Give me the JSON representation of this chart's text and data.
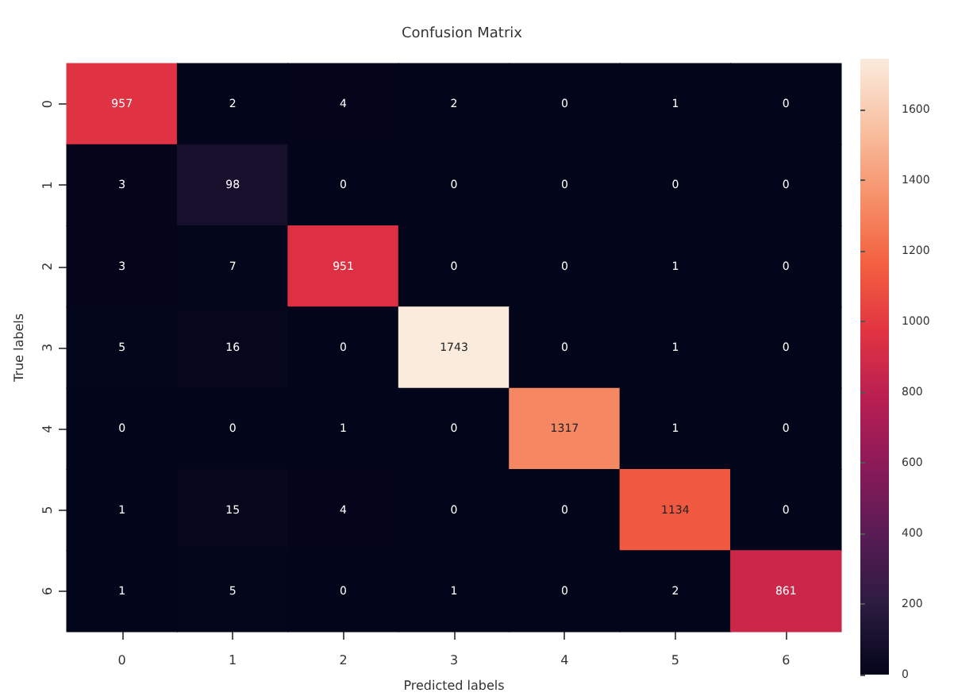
{
  "chart_data": {
    "type": "heatmap",
    "title": "Confusion Matrix",
    "xlabel": "Predicted labels",
    "ylabel": "True labels",
    "categories": [
      "0",
      "1",
      "2",
      "3",
      "4",
      "5",
      "6"
    ],
    "y_categories": [
      "0",
      "1",
      "2",
      "3",
      "4",
      "5",
      "6"
    ],
    "cells": [
      [
        957,
        2,
        4,
        2,
        0,
        1,
        0
      ],
      [
        3,
        98,
        0,
        0,
        0,
        0,
        0
      ],
      [
        3,
        7,
        951,
        0,
        0,
        1,
        0
      ],
      [
        5,
        16,
        0,
        1743,
        0,
        1,
        0
      ],
      [
        0,
        0,
        1,
        0,
        1317,
        1,
        0
      ],
      [
        1,
        15,
        4,
        0,
        0,
        1134,
        0
      ],
      [
        1,
        5,
        0,
        1,
        0,
        2,
        861
      ]
    ],
    "data_labels": true,
    "clim": [
      0,
      1743
    ],
    "cticks": [
      0,
      200,
      400,
      600,
      800,
      1000,
      1200,
      1400,
      1600
    ]
  }
}
